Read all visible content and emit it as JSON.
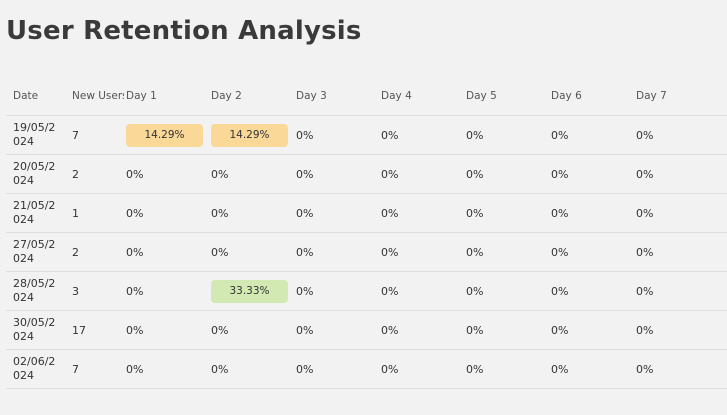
{
  "title": "User Retention Analysis",
  "headers": {
    "date": "Date",
    "new_users": "New Users",
    "days": [
      "Day 1",
      "Day 2",
      "Day 3",
      "Day 4",
      "Day 5",
      "Day 6",
      "Day 7"
    ]
  },
  "colors": {
    "highlight_orange": "#f9d898",
    "highlight_green": "#d3e9b4"
  },
  "rows": [
    {
      "date": "19/05/2024",
      "new_users": "7",
      "days": [
        {
          "value": "14.29%",
          "highlight": "orange"
        },
        {
          "value": "14.29%",
          "highlight": "orange"
        },
        {
          "value": "0%",
          "highlight": ""
        },
        {
          "value": "0%",
          "highlight": ""
        },
        {
          "value": "0%",
          "highlight": ""
        },
        {
          "value": "0%",
          "highlight": ""
        },
        {
          "value": "0%",
          "highlight": ""
        }
      ]
    },
    {
      "date": "20/05/2024",
      "new_users": "2",
      "days": [
        {
          "value": "0%",
          "highlight": ""
        },
        {
          "value": "0%",
          "highlight": ""
        },
        {
          "value": "0%",
          "highlight": ""
        },
        {
          "value": "0%",
          "highlight": ""
        },
        {
          "value": "0%",
          "highlight": ""
        },
        {
          "value": "0%",
          "highlight": ""
        },
        {
          "value": "0%",
          "highlight": ""
        }
      ]
    },
    {
      "date": "21/05/2024",
      "new_users": "1",
      "days": [
        {
          "value": "0%",
          "highlight": ""
        },
        {
          "value": "0%",
          "highlight": ""
        },
        {
          "value": "0%",
          "highlight": ""
        },
        {
          "value": "0%",
          "highlight": ""
        },
        {
          "value": "0%",
          "highlight": ""
        },
        {
          "value": "0%",
          "highlight": ""
        },
        {
          "value": "0%",
          "highlight": ""
        }
      ]
    },
    {
      "date": "27/05/2024",
      "new_users": "2",
      "days": [
        {
          "value": "0%",
          "highlight": ""
        },
        {
          "value": "0%",
          "highlight": ""
        },
        {
          "value": "0%",
          "highlight": ""
        },
        {
          "value": "0%",
          "highlight": ""
        },
        {
          "value": "0%",
          "highlight": ""
        },
        {
          "value": "0%",
          "highlight": ""
        },
        {
          "value": "0%",
          "highlight": ""
        }
      ]
    },
    {
      "date": "28/05/2024",
      "new_users": "3",
      "days": [
        {
          "value": "0%",
          "highlight": ""
        },
        {
          "value": "33.33%",
          "highlight": "green"
        },
        {
          "value": "0%",
          "highlight": ""
        },
        {
          "value": "0%",
          "highlight": ""
        },
        {
          "value": "0%",
          "highlight": ""
        },
        {
          "value": "0%",
          "highlight": ""
        },
        {
          "value": "0%",
          "highlight": ""
        }
      ]
    },
    {
      "date": "30/05/2024",
      "new_users": "17",
      "days": [
        {
          "value": "0%",
          "highlight": ""
        },
        {
          "value": "0%",
          "highlight": ""
        },
        {
          "value": "0%",
          "highlight": ""
        },
        {
          "value": "0%",
          "highlight": ""
        },
        {
          "value": "0%",
          "highlight": ""
        },
        {
          "value": "0%",
          "highlight": ""
        },
        {
          "value": "0%",
          "highlight": ""
        }
      ]
    },
    {
      "date": "02/06/2024",
      "new_users": "7",
      "days": [
        {
          "value": "0%",
          "highlight": ""
        },
        {
          "value": "0%",
          "highlight": ""
        },
        {
          "value": "0%",
          "highlight": ""
        },
        {
          "value": "0%",
          "highlight": ""
        },
        {
          "value": "0%",
          "highlight": ""
        },
        {
          "value": "0%",
          "highlight": ""
        },
        {
          "value": "0%",
          "highlight": ""
        }
      ]
    }
  ]
}
